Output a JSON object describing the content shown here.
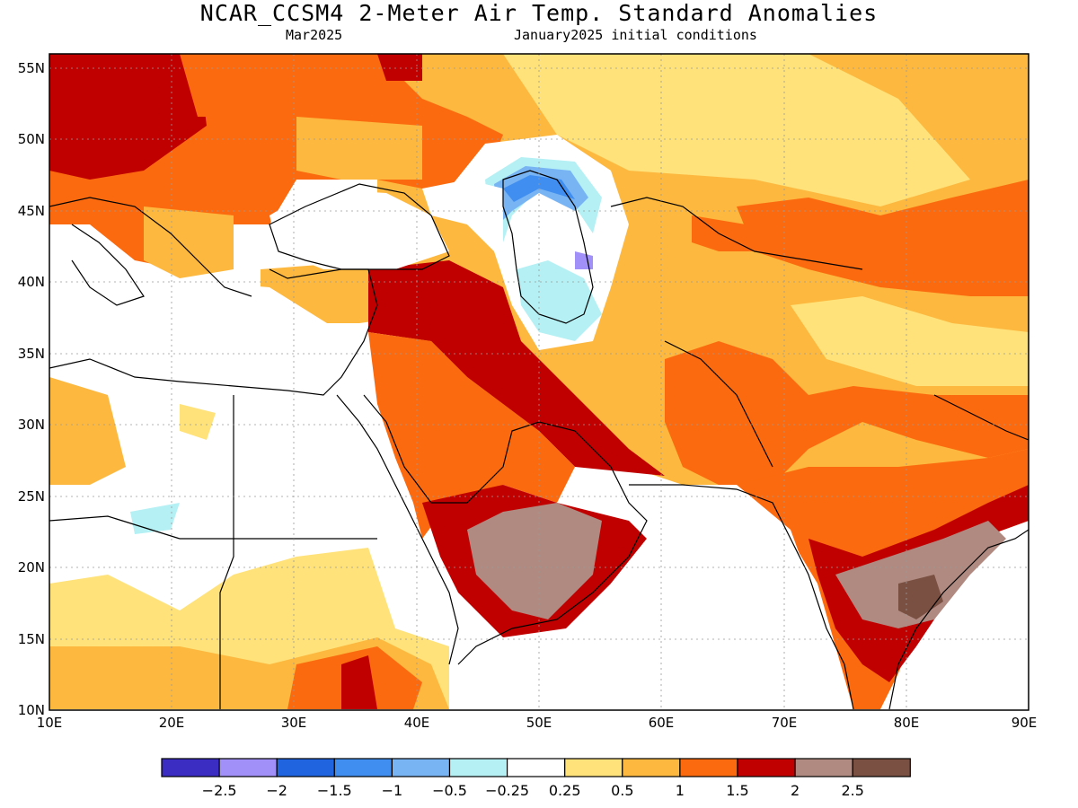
{
  "title": "NCAR_CCSM4 2-Meter Air Temp. Standard Anomalies",
  "valid_month": "Mar2025",
  "init_conditions": "January2025 initial conditions",
  "colors": {
    "neg_2_5": "#3b2cc2",
    "neg_2": "#a090f8",
    "neg_1_5": "#2064e0",
    "neg_1": "#3f8ef0",
    "neg_0_5": "#78b4f4",
    "neg_0_25": "#b4f0f4",
    "neutral": "#ffffff",
    "pos_0_25": "#ffe27a",
    "pos_0_5": "#fdb83f",
    "pos_1": "#fc6a0f",
    "pos_1_5": "#c00000",
    "pos_2": "#b08a80",
    "pos_2_5": "#7a5043"
  },
  "chart_data": {
    "type": "heatmap",
    "xlim": [
      10,
      90
    ],
    "ylim": [
      10,
      56
    ],
    "x_ticks": [
      "10E",
      "20E",
      "30E",
      "40E",
      "50E",
      "60E",
      "70E",
      "80E",
      "90E"
    ],
    "y_ticks": [
      "10N",
      "15N",
      "20N",
      "25N",
      "30N",
      "35N",
      "40N",
      "45N",
      "50N",
      "55N"
    ],
    "grid": true,
    "colorbar": {
      "labels": [
        "-2.5",
        "-2",
        "-1.5",
        "-1",
        "-0.5",
        "-0.25",
        "0.25",
        "0.5",
        "1",
        "1.5",
        "2",
        "2.5"
      ],
      "colors": [
        "#3b2cc2",
        "#a090f8",
        "#2064e0",
        "#3f8ef0",
        "#78b4f4",
        "#b4f0f4",
        "#ffffff",
        "#ffe27a",
        "#fdb83f",
        "#fc6a0f",
        "#c00000",
        "#b08a80",
        "#7a5043"
      ]
    }
  }
}
